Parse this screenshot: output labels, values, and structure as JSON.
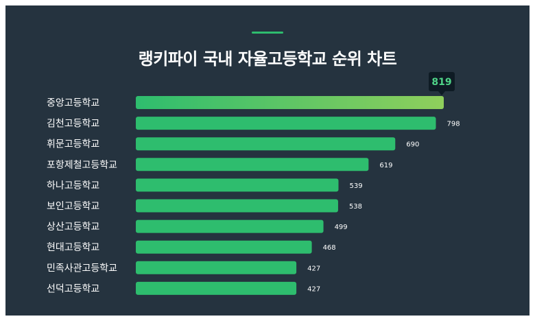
{
  "header": {
    "title": "랭키파이 국내 자율고등학교 순위 차트"
  },
  "colors": {
    "background": "#25333f",
    "bar": "#2ebd6e",
    "top_bar_start": "#2ebd6e",
    "top_bar_end": "#8fcf5c",
    "tooltip_bg": "#0e1b24",
    "tooltip_text": "#4fd488"
  },
  "chart_data": {
    "type": "bar",
    "orientation": "horizontal",
    "title": "랭키파이 국내 자율고등학교 순위 차트",
    "categories": [
      "중앙고등학교",
      "김천고등학교",
      "휘문고등학교",
      "포항제철고등학교",
      "하나고등학교",
      "보인고등학교",
      "상산고등학교",
      "현대고등학교",
      "민족사관고등학교",
      "선덕고등학교"
    ],
    "values": [
      819,
      798,
      690,
      619,
      539,
      538,
      499,
      468,
      427,
      427
    ],
    "xlim": [
      0,
      819
    ],
    "grid": false,
    "legend": "none",
    "highlight_index": 0
  }
}
